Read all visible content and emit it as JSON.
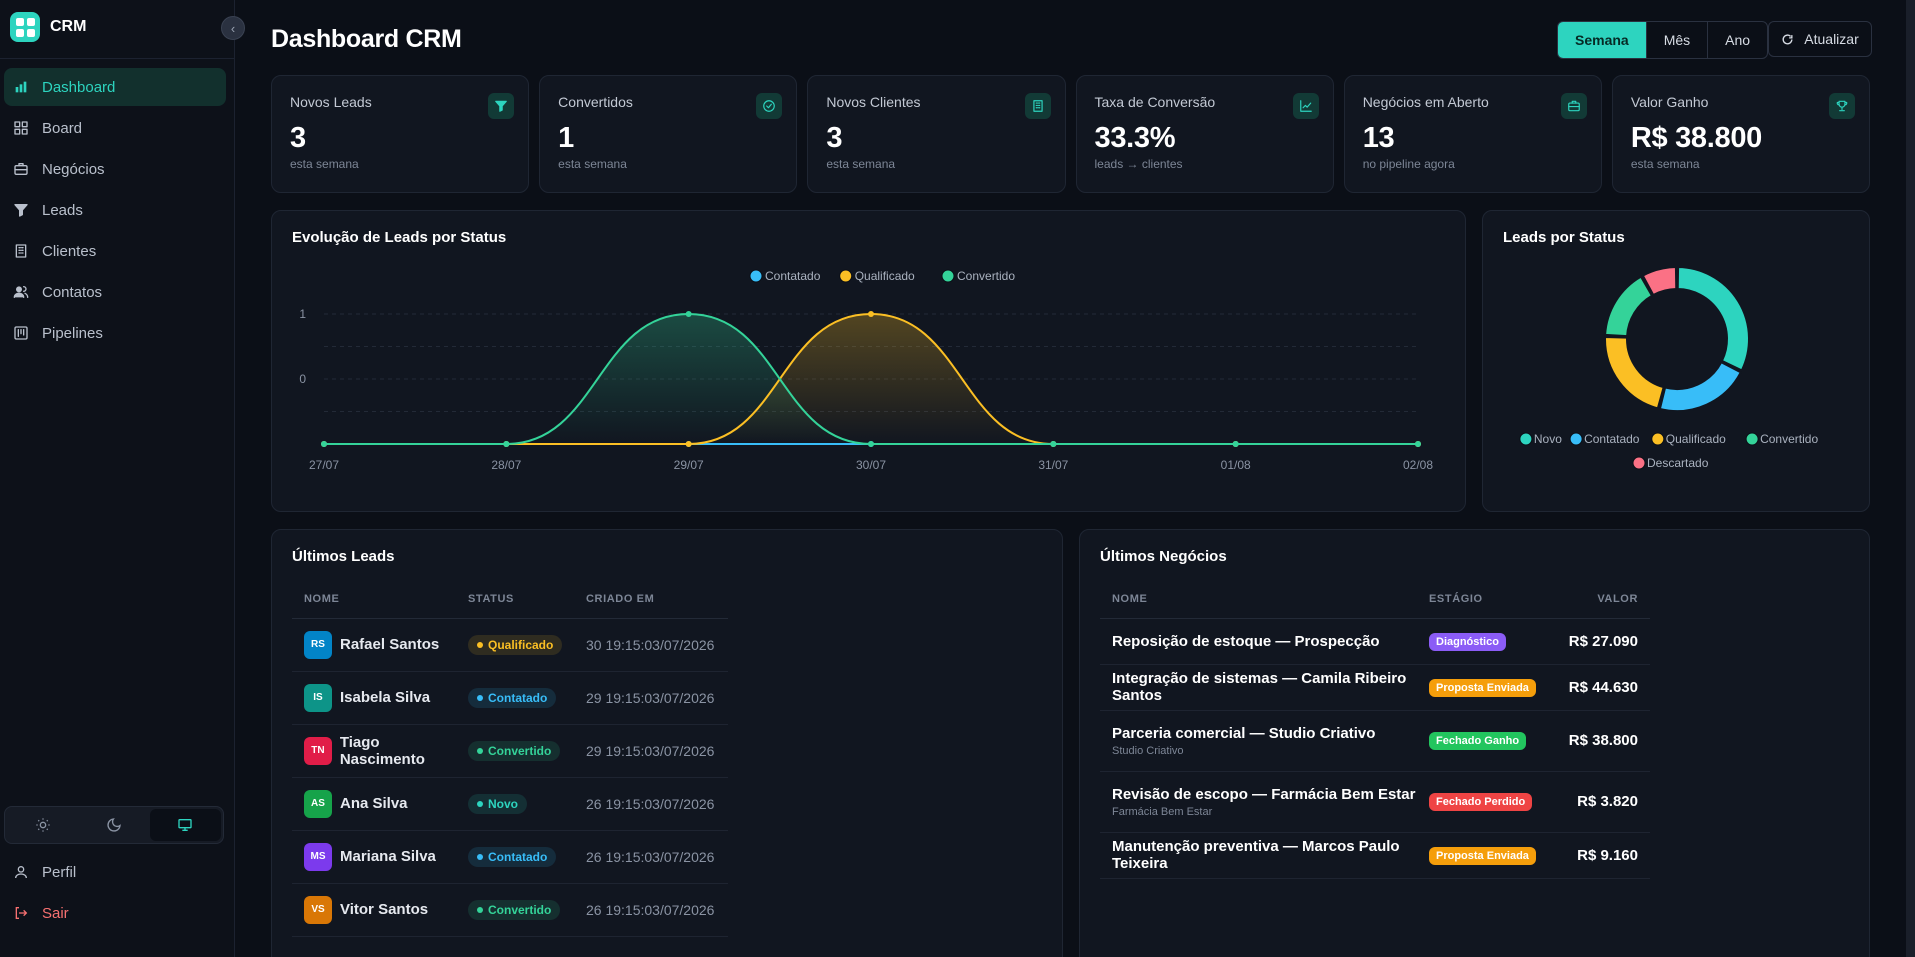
{
  "brand": {
    "name": "CRM"
  },
  "sidebar": {
    "items": [
      {
        "label": "Dashboard",
        "icon": "bar-chart-icon",
        "active": true
      },
      {
        "label": "Board",
        "icon": "board-icon"
      },
      {
        "label": "Negócios",
        "icon": "briefcase-icon"
      },
      {
        "label": "Leads",
        "icon": "filter-icon"
      },
      {
        "label": "Clientes",
        "icon": "building-icon"
      },
      {
        "label": "Contatos",
        "icon": "users-icon"
      },
      {
        "label": "Pipelines",
        "icon": "pipeline-icon"
      }
    ],
    "theme": {
      "selected": "system"
    },
    "profile_label": "Perfil",
    "logout_label": "Sair"
  },
  "header": {
    "title": "Dashboard CRM",
    "periods": [
      "Semana",
      "Mês",
      "Ano"
    ],
    "active_period": "Semana",
    "refresh_label": "Atualizar"
  },
  "kpis": [
    {
      "label": "Novos Leads",
      "value": "3",
      "sub": "esta semana",
      "icon": "filter-icon"
    },
    {
      "label": "Convertidos",
      "value": "1",
      "sub": "esta semana",
      "icon": "check-circle-icon"
    },
    {
      "label": "Novos Clientes",
      "value": "3",
      "sub": "esta semana",
      "icon": "building-icon"
    },
    {
      "label": "Taxa de Conversão",
      "value": "33.3%",
      "sub": "leads → clientes",
      "icon": "trend-up-icon"
    },
    {
      "label": "Negócios em Aberto",
      "value": "13",
      "sub": "no pipeline agora",
      "icon": "briefcase-icon"
    },
    {
      "label": "Valor Ganho",
      "value": "R$ 38.800",
      "sub": "esta semana",
      "icon": "trophy-icon"
    }
  ],
  "chart_data": [
    {
      "type": "area",
      "title": "Evolução de Leads por Status",
      "categories": [
        "27/07",
        "28/07",
        "29/07",
        "30/07",
        "31/07",
        "01/08",
        "02/08"
      ],
      "y_ticks": [
        "0",
        "1"
      ],
      "series": [
        {
          "name": "Contatado",
          "color": "#38bdf8",
          "values": [
            0,
            0,
            0,
            0,
            0,
            0,
            0
          ]
        },
        {
          "name": "Qualificado",
          "color": "#fbbf24",
          "values": [
            0,
            0,
            0,
            1,
            0,
            0,
            0
          ]
        },
        {
          "name": "Convertido",
          "color": "#34d399",
          "values": [
            0,
            0,
            1,
            0,
            0,
            0,
            0
          ]
        }
      ],
      "legend": "top-center"
    },
    {
      "type": "pie",
      "title": "Leads por Status",
      "donut": true,
      "series": [
        {
          "name": "Novo",
          "value": 3,
          "color": "#2dd4bf"
        },
        {
          "name": "Contatado",
          "value": 2,
          "color": "#38bdf8"
        },
        {
          "name": "Qualificado",
          "value": 2,
          "color": "#fbbf24"
        },
        {
          "name": "Convertido",
          "value": 1.5,
          "color": "#34d399"
        },
        {
          "name": "Descartado",
          "value": 0.75,
          "color": "#fb7185"
        }
      ],
      "legend": "bottom"
    }
  ],
  "leads": {
    "title": "Últimos Leads",
    "columns": [
      "NOME",
      "STATUS",
      "CRIADO EM"
    ],
    "rows": [
      {
        "initials": "RS",
        "name": "Rafael Santos",
        "status": "Qualificado",
        "status_key": "qualificado",
        "avatar_color": "#0284c7",
        "created": "30 19:15:03/07/2026"
      },
      {
        "initials": "IS",
        "name": "Isabela Silva",
        "status": "Contatado",
        "status_key": "contatado",
        "avatar_color": "#0d9488",
        "created": "29 19:15:03/07/2026"
      },
      {
        "initials": "TN",
        "name": "Tiago Nascimento",
        "status": "Convertido",
        "status_key": "convertido",
        "avatar_color": "#e11d48",
        "created": "29 19:15:03/07/2026"
      },
      {
        "initials": "AS",
        "name": "Ana Silva",
        "status": "Novo",
        "status_key": "novo",
        "avatar_color": "#16a34a",
        "created": "26 19:15:03/07/2026"
      },
      {
        "initials": "MS",
        "name": "Mariana Silva",
        "status": "Contatado",
        "status_key": "contatado",
        "avatar_color": "#7c3aed",
        "created": "26 19:15:03/07/2026"
      },
      {
        "initials": "VS",
        "name": "Vitor Santos",
        "status": "Convertido",
        "status_key": "convertido",
        "avatar_color": "#d97706",
        "created": "26 19:15:03/07/2026"
      }
    ]
  },
  "deals": {
    "title": "Últimos Negócios",
    "columns": [
      "NOME",
      "ESTÁGIO",
      "VALOR"
    ],
    "rows": [
      {
        "name": "Reposição de estoque — Prospecção",
        "sub": "",
        "stage": "Diagnóstico",
        "stage_color": "#8b5cf6",
        "value": "R$ 27.090"
      },
      {
        "name": "Integração de sistemas — Camila Ribeiro Santos",
        "sub": "",
        "stage": "Proposta Enviada",
        "stage_color": "#f59e0b",
        "value": "R$ 44.630"
      },
      {
        "name": "Parceria comercial — Studio Criativo",
        "sub": "Studio Criativo",
        "stage": "Fechado Ganho",
        "stage_color": "#22c55e",
        "value": "R$ 38.800"
      },
      {
        "name": "Revisão de escopo — Farmácia Bem Estar",
        "sub": "Farmácia Bem Estar",
        "stage": "Fechado Perdido",
        "stage_color": "#ef4444",
        "value": "R$ 3.820"
      },
      {
        "name": "Manutenção preventiva — Marcos Paulo Teixeira",
        "sub": "",
        "stage": "Proposta Enviada",
        "stage_color": "#f59e0b",
        "value": "R$ 9.160"
      }
    ]
  },
  "colors": {
    "accent": "#2dd4bf",
    "status": {
      "novo": "#2dd4bf",
      "contatado": "#38bdf8",
      "qualificado": "#fbbf24",
      "convertido": "#34d399",
      "descartado": "#fb7185"
    }
  }
}
